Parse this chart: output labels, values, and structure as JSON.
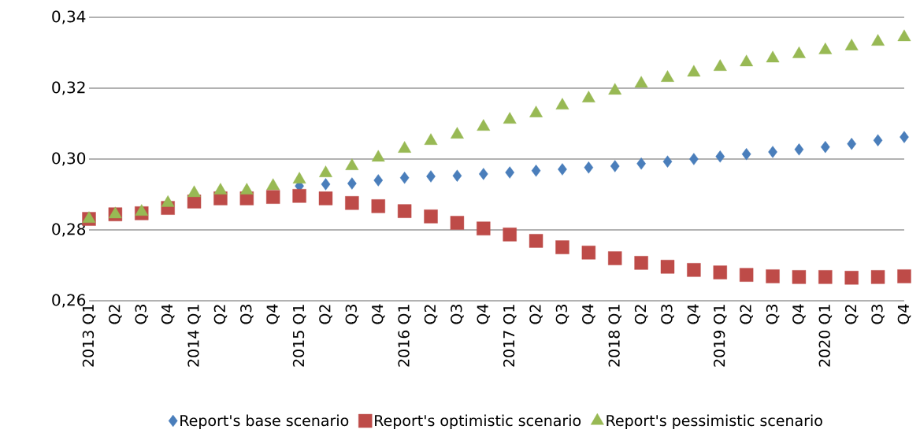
{
  "chart_data": {
    "type": "scatter",
    "categories": [
      "2013 Q1",
      "Q2",
      "Q3",
      "Q4",
      "2014 Q1",
      "Q2",
      "Q3",
      "Q4",
      "2015 Q1",
      "Q2",
      "Q3",
      "Q4",
      "2016 Q1",
      "Q2",
      "Q3",
      "Q4",
      "2017 Q1",
      "Q2",
      "Q3",
      "Q4",
      "2018 Q1",
      "Q2",
      "Q3",
      "Q4",
      "2019 Q1",
      "Q2",
      "Q3",
      "Q4",
      "2020 Q1",
      "Q2",
      "Q3",
      "Q4"
    ],
    "series": [
      {
        "name": "Report's base scenario",
        "color": "#4a7ebb",
        "marker": "diamond",
        "values": [
          null,
          null,
          null,
          null,
          null,
          null,
          null,
          null,
          0.2924,
          0.2929,
          0.2931,
          0.294,
          0.2947,
          0.2951,
          0.2953,
          0.2958,
          0.2962,
          0.2967,
          0.2971,
          0.2976,
          0.298,
          0.2987,
          0.2993,
          0.3,
          0.3007,
          0.3014,
          0.302,
          0.3027,
          0.3034,
          0.3043,
          0.3053,
          0.3062
        ]
      },
      {
        "name": "Report's optimistic scenario",
        "color": "#be4b48",
        "marker": "square",
        "values": [
          0.2831,
          0.2844,
          0.2847,
          0.2862,
          0.288,
          0.2889,
          0.2889,
          0.2893,
          0.2896,
          0.2889,
          0.2876,
          0.2867,
          0.2853,
          0.2838,
          0.282,
          0.2804,
          0.2787,
          0.2769,
          0.2751,
          0.2736,
          0.272,
          0.2707,
          0.2696,
          0.2687,
          0.268,
          0.2673,
          0.2669,
          0.2667,
          0.2667,
          0.2665,
          0.2667,
          0.2669
        ]
      },
      {
        "name": "Report's pessimistic scenario",
        "color": "#98b954",
        "marker": "triangle",
        "values": [
          0.2831,
          0.2844,
          0.2851,
          0.2876,
          0.2904,
          0.2911,
          0.2911,
          0.2924,
          0.2942,
          0.296,
          0.298,
          0.3004,
          0.3029,
          0.3051,
          0.3069,
          0.3091,
          0.3111,
          0.3129,
          0.3151,
          0.3171,
          0.3193,
          0.3213,
          0.3229,
          0.3244,
          0.326,
          0.3273,
          0.3284,
          0.3296,
          0.3307,
          0.3318,
          0.3331,
          0.3344
        ]
      }
    ],
    "ylim": [
      0.26,
      0.34
    ],
    "yticks": [
      {
        "value": 0.26,
        "label": "0,26"
      },
      {
        "value": 0.28,
        "label": "0,28"
      },
      {
        "value": 0.3,
        "label": "0,30"
      },
      {
        "value": 0.32,
        "label": "0,32"
      },
      {
        "value": 0.34,
        "label": "0,34"
      }
    ],
    "grid": "y",
    "legend": "bottom"
  }
}
